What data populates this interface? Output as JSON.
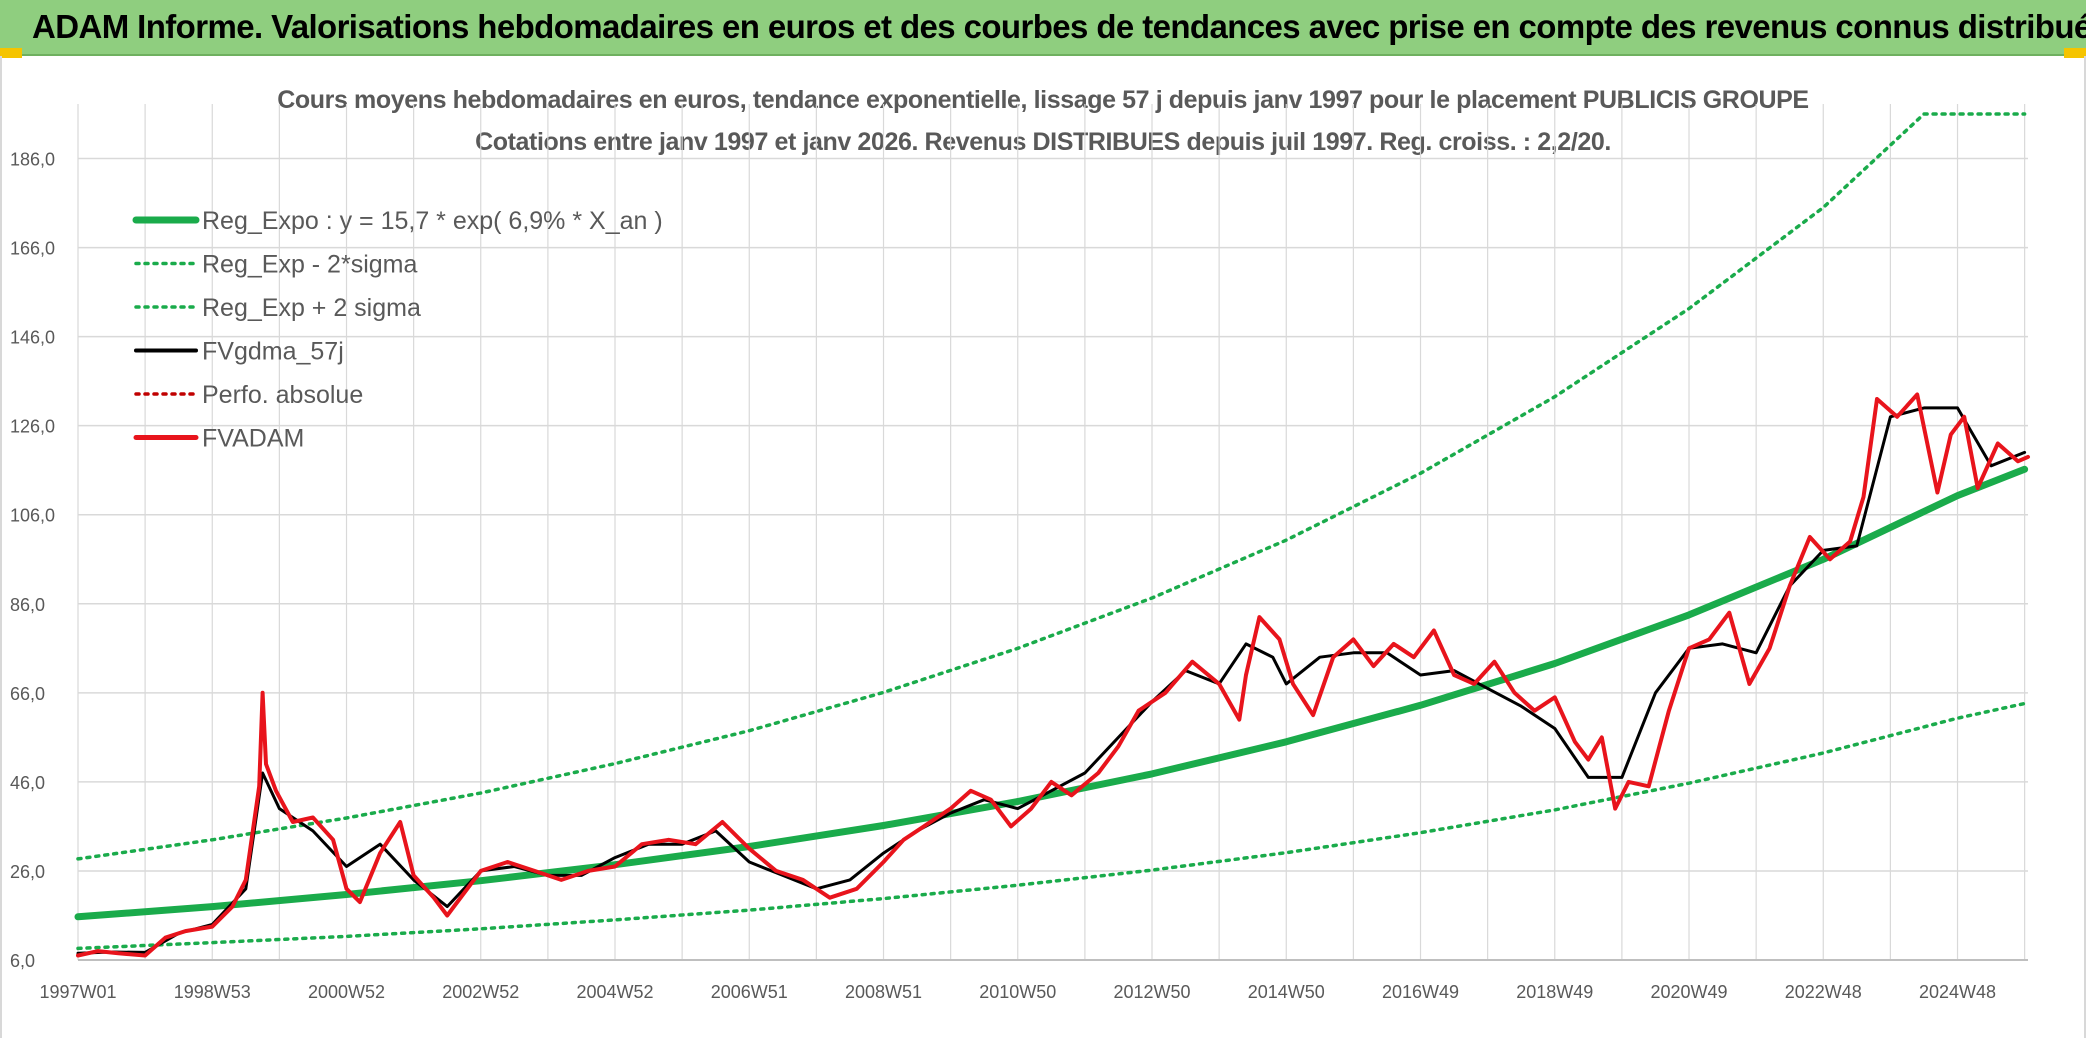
{
  "header": {
    "title": "ADAM Informe. Valorisations hebdomadaires en euros et des courbes de tendances avec prise en compte des revenus connus distribués"
  },
  "colors": {
    "banner": "#8fce7f",
    "regression": "#1aab4b",
    "smoothed": "#000000",
    "fvadam": "#e8141c",
    "perfo": "#c00000",
    "grid": "#d9d9d9",
    "text": "#595959"
  },
  "chart_data": {
    "type": "line",
    "title": "Cours moyens hebdomadaires en euros, tendance exponentielle, lissage 57 j depuis janv 1997 pour le placement PUBLICIS GROUPE",
    "subtitle": "Cotations entre janv 1997 et janv 2026. Revenus DISTRIBUES depuis juil 1997. Reg. croiss. : 2,2/20.",
    "xlabel": "",
    "ylabel": "",
    "x_range": [
      1997.0,
      2026.05
    ],
    "ylim": [
      6.0,
      196.0
    ],
    "y_ticks": [
      "6,0",
      "26,0",
      "46,0",
      "66,0",
      "86,0",
      "106,0",
      "126,0",
      "146,0",
      "166,0",
      "186,0"
    ],
    "x_tick_labels": [
      "1997W01",
      "1998W53",
      "2000W52",
      "2002W52",
      "2004W52",
      "2006W51",
      "2008W51",
      "2010W50",
      "2012W50",
      "2014W50",
      "2016W49",
      "2018W49",
      "2020W49",
      "2022W48",
      "2024W48"
    ],
    "grid": true,
    "legend_position": "top-left",
    "series": [
      {
        "name": "Reg_Expo : y = 15,7 * exp( 6,9% *  X_an )",
        "style": "thick-solid",
        "color": "#1aab4b",
        "x": [
          1997,
          1999,
          2001,
          2003,
          2005,
          2007,
          2009,
          2011,
          2013,
          2015,
          2017,
          2019,
          2021,
          2023,
          2025,
          2026
        ],
        "y": [
          15.7,
          18.0,
          20.7,
          23.8,
          27.4,
          31.5,
          36.2,
          41.6,
          47.8,
          55.0,
          63.2,
          72.6,
          83.5,
          96.0,
          110.3,
          116.2
        ]
      },
      {
        "name": "Reg_Exp - 2*sigma",
        "style": "dotted",
        "color": "#1aab4b",
        "x": [
          1997,
          1999,
          2001,
          2003,
          2005,
          2007,
          2009,
          2011,
          2013,
          2015,
          2017,
          2019,
          2021,
          2023,
          2025,
          2026
        ],
        "y": [
          8.6,
          9.9,
          11.3,
          13.0,
          15.0,
          17.2,
          19.8,
          22.8,
          26.2,
          30.1,
          34.6,
          39.7,
          45.7,
          52.5,
          60.3,
          63.6
        ]
      },
      {
        "name": "Reg_Exp + 2 sigma",
        "style": "dotted",
        "color": "#1aab4b",
        "x": [
          1997,
          1999,
          2001,
          2003,
          2005,
          2007,
          2009,
          2011,
          2013,
          2015,
          2017,
          2019,
          2021,
          2023,
          2024.5,
          2026
        ],
        "y": [
          28.7,
          33.0,
          37.9,
          43.5,
          50.1,
          57.5,
          66.1,
          76.0,
          87.3,
          100.3,
          115.3,
          132.5,
          152.3,
          175.0,
          196.0,
          196.0
        ]
      },
      {
        "name": "FVgdma_57j",
        "style": "solid",
        "color": "#000000",
        "x": [
          1997.0,
          1997.5,
          1998.0,
          1998.5,
          1999.0,
          1999.5,
          1999.75,
          2000.0,
          2000.5,
          2001.0,
          2001.5,
          2002.0,
          2002.5,
          2003.0,
          2003.5,
          2004.0,
          2004.5,
          2005.0,
          2005.5,
          2006.0,
          2006.5,
          2007.0,
          2007.5,
          2008.0,
          2008.5,
          2009.0,
          2009.5,
          2010.0,
          2010.5,
          2011.0,
          2011.5,
          2012.0,
          2012.5,
          2013.0,
          2013.5,
          2014.0,
          2014.4,
          2014.8,
          2015.0,
          2015.5,
          2016.0,
          2016.5,
          2017.0,
          2017.5,
          2018.0,
          2018.5,
          2019.0,
          2019.5,
          2020.0,
          2020.5,
          2021.0,
          2021.5,
          2022.0,
          2022.5,
          2023.0,
          2023.5,
          2024.0,
          2024.5,
          2025.0,
          2025.5,
          2026.0
        ],
        "y": [
          7.5,
          7.8,
          7.7,
          12.0,
          14.0,
          22.0,
          48.0,
          40.0,
          35.0,
          27.0,
          32.0,
          24.0,
          18.0,
          26.0,
          27.0,
          25.0,
          25.0,
          29.0,
          32.0,
          32.0,
          35.0,
          28.0,
          25.0,
          22.0,
          24.0,
          30.0,
          35.0,
          39.0,
          42.0,
          40.0,
          44.0,
          48.0,
          56.0,
          64.0,
          71.0,
          68.0,
          77.0,
          74.0,
          68.0,
          74.0,
          75.0,
          75.0,
          70.0,
          71.0,
          67.0,
          63.0,
          58.0,
          47.0,
          47.0,
          66.0,
          76.0,
          77.0,
          75.0,
          90.0,
          98.0,
          99.0,
          128.0,
          130.0,
          130.0,
          117.0,
          120.0
        ]
      },
      {
        "name": "Perfo. absolue",
        "style": "dotted",
        "color": "#c00000",
        "x": [],
        "y": []
      },
      {
        "name": "FVADAM",
        "style": "solid",
        "color": "#e8141c",
        "x": [
          1997.0,
          1997.3,
          1997.6,
          1998.0,
          1998.3,
          1998.6,
          1999.0,
          1999.3,
          1999.5,
          1999.7,
          1999.75,
          1999.8,
          1999.95,
          2000.2,
          2000.5,
          2000.8,
          2001.0,
          2001.2,
          2001.5,
          2001.8,
          2002.0,
          2002.3,
          2002.5,
          2002.8,
          2003.0,
          2003.4,
          2003.8,
          2004.2,
          2004.6,
          2005.0,
          2005.4,
          2005.8,
          2006.2,
          2006.6,
          2007.0,
          2007.4,
          2007.8,
          2008.2,
          2008.6,
          2009.0,
          2009.3,
          2009.6,
          2010.0,
          2010.3,
          2010.6,
          2010.9,
          2011.2,
          2011.5,
          2011.8,
          2012.2,
          2012.5,
          2012.8,
          2013.2,
          2013.6,
          2014.0,
          2014.3,
          2014.4,
          2014.6,
          2014.9,
          2015.1,
          2015.4,
          2015.7,
          2016.0,
          2016.3,
          2016.6,
          2016.9,
          2017.2,
          2017.5,
          2017.8,
          2018.1,
          2018.4,
          2018.7,
          2019.0,
          2019.3,
          2019.5,
          2019.7,
          2019.9,
          2020.1,
          2020.4,
          2020.7,
          2021.0,
          2021.3,
          2021.6,
          2021.9,
          2022.2,
          2022.5,
          2022.8,
          2023.1,
          2023.4,
          2023.6,
          2023.8,
          2024.1,
          2024.4,
          2024.7,
          2024.9,
          2025.1,
          2025.3,
          2025.6,
          2025.9,
          2026.05
        ],
        "y": [
          7.0,
          8.0,
          7.5,
          7.0,
          11.0,
          12.5,
          13.5,
          18.0,
          24.0,
          45.0,
          66.0,
          50.0,
          44.0,
          37.0,
          38.0,
          33.0,
          22.0,
          19.0,
          30.0,
          37.0,
          25.0,
          20.0,
          16.0,
          22.0,
          26.0,
          28.0,
          26.0,
          24.0,
          26.0,
          27.0,
          32.0,
          33.0,
          32.0,
          37.0,
          31.0,
          26.0,
          24.0,
          20.0,
          22.0,
          28.0,
          33.0,
          36.0,
          40.0,
          44.0,
          42.0,
          36.0,
          40.0,
          46.0,
          43.0,
          48.0,
          54.0,
          62.0,
          66.0,
          73.0,
          68.0,
          60.0,
          70.0,
          83.0,
          78.0,
          68.0,
          61.0,
          74.0,
          78.0,
          72.0,
          77.0,
          74.0,
          80.0,
          70.0,
          68.0,
          73.0,
          66.0,
          62.0,
          65.0,
          55.0,
          51.0,
          56.0,
          40.0,
          46.0,
          45.0,
          62.0,
          76.0,
          78.0,
          84.0,
          68.0,
          76.0,
          90.0,
          101.0,
          96.0,
          100.0,
          110.0,
          132.0,
          128.0,
          133.0,
          111.0,
          124.0,
          128.0,
          112.0,
          122.0,
          118.0,
          119.0
        ]
      }
    ]
  }
}
